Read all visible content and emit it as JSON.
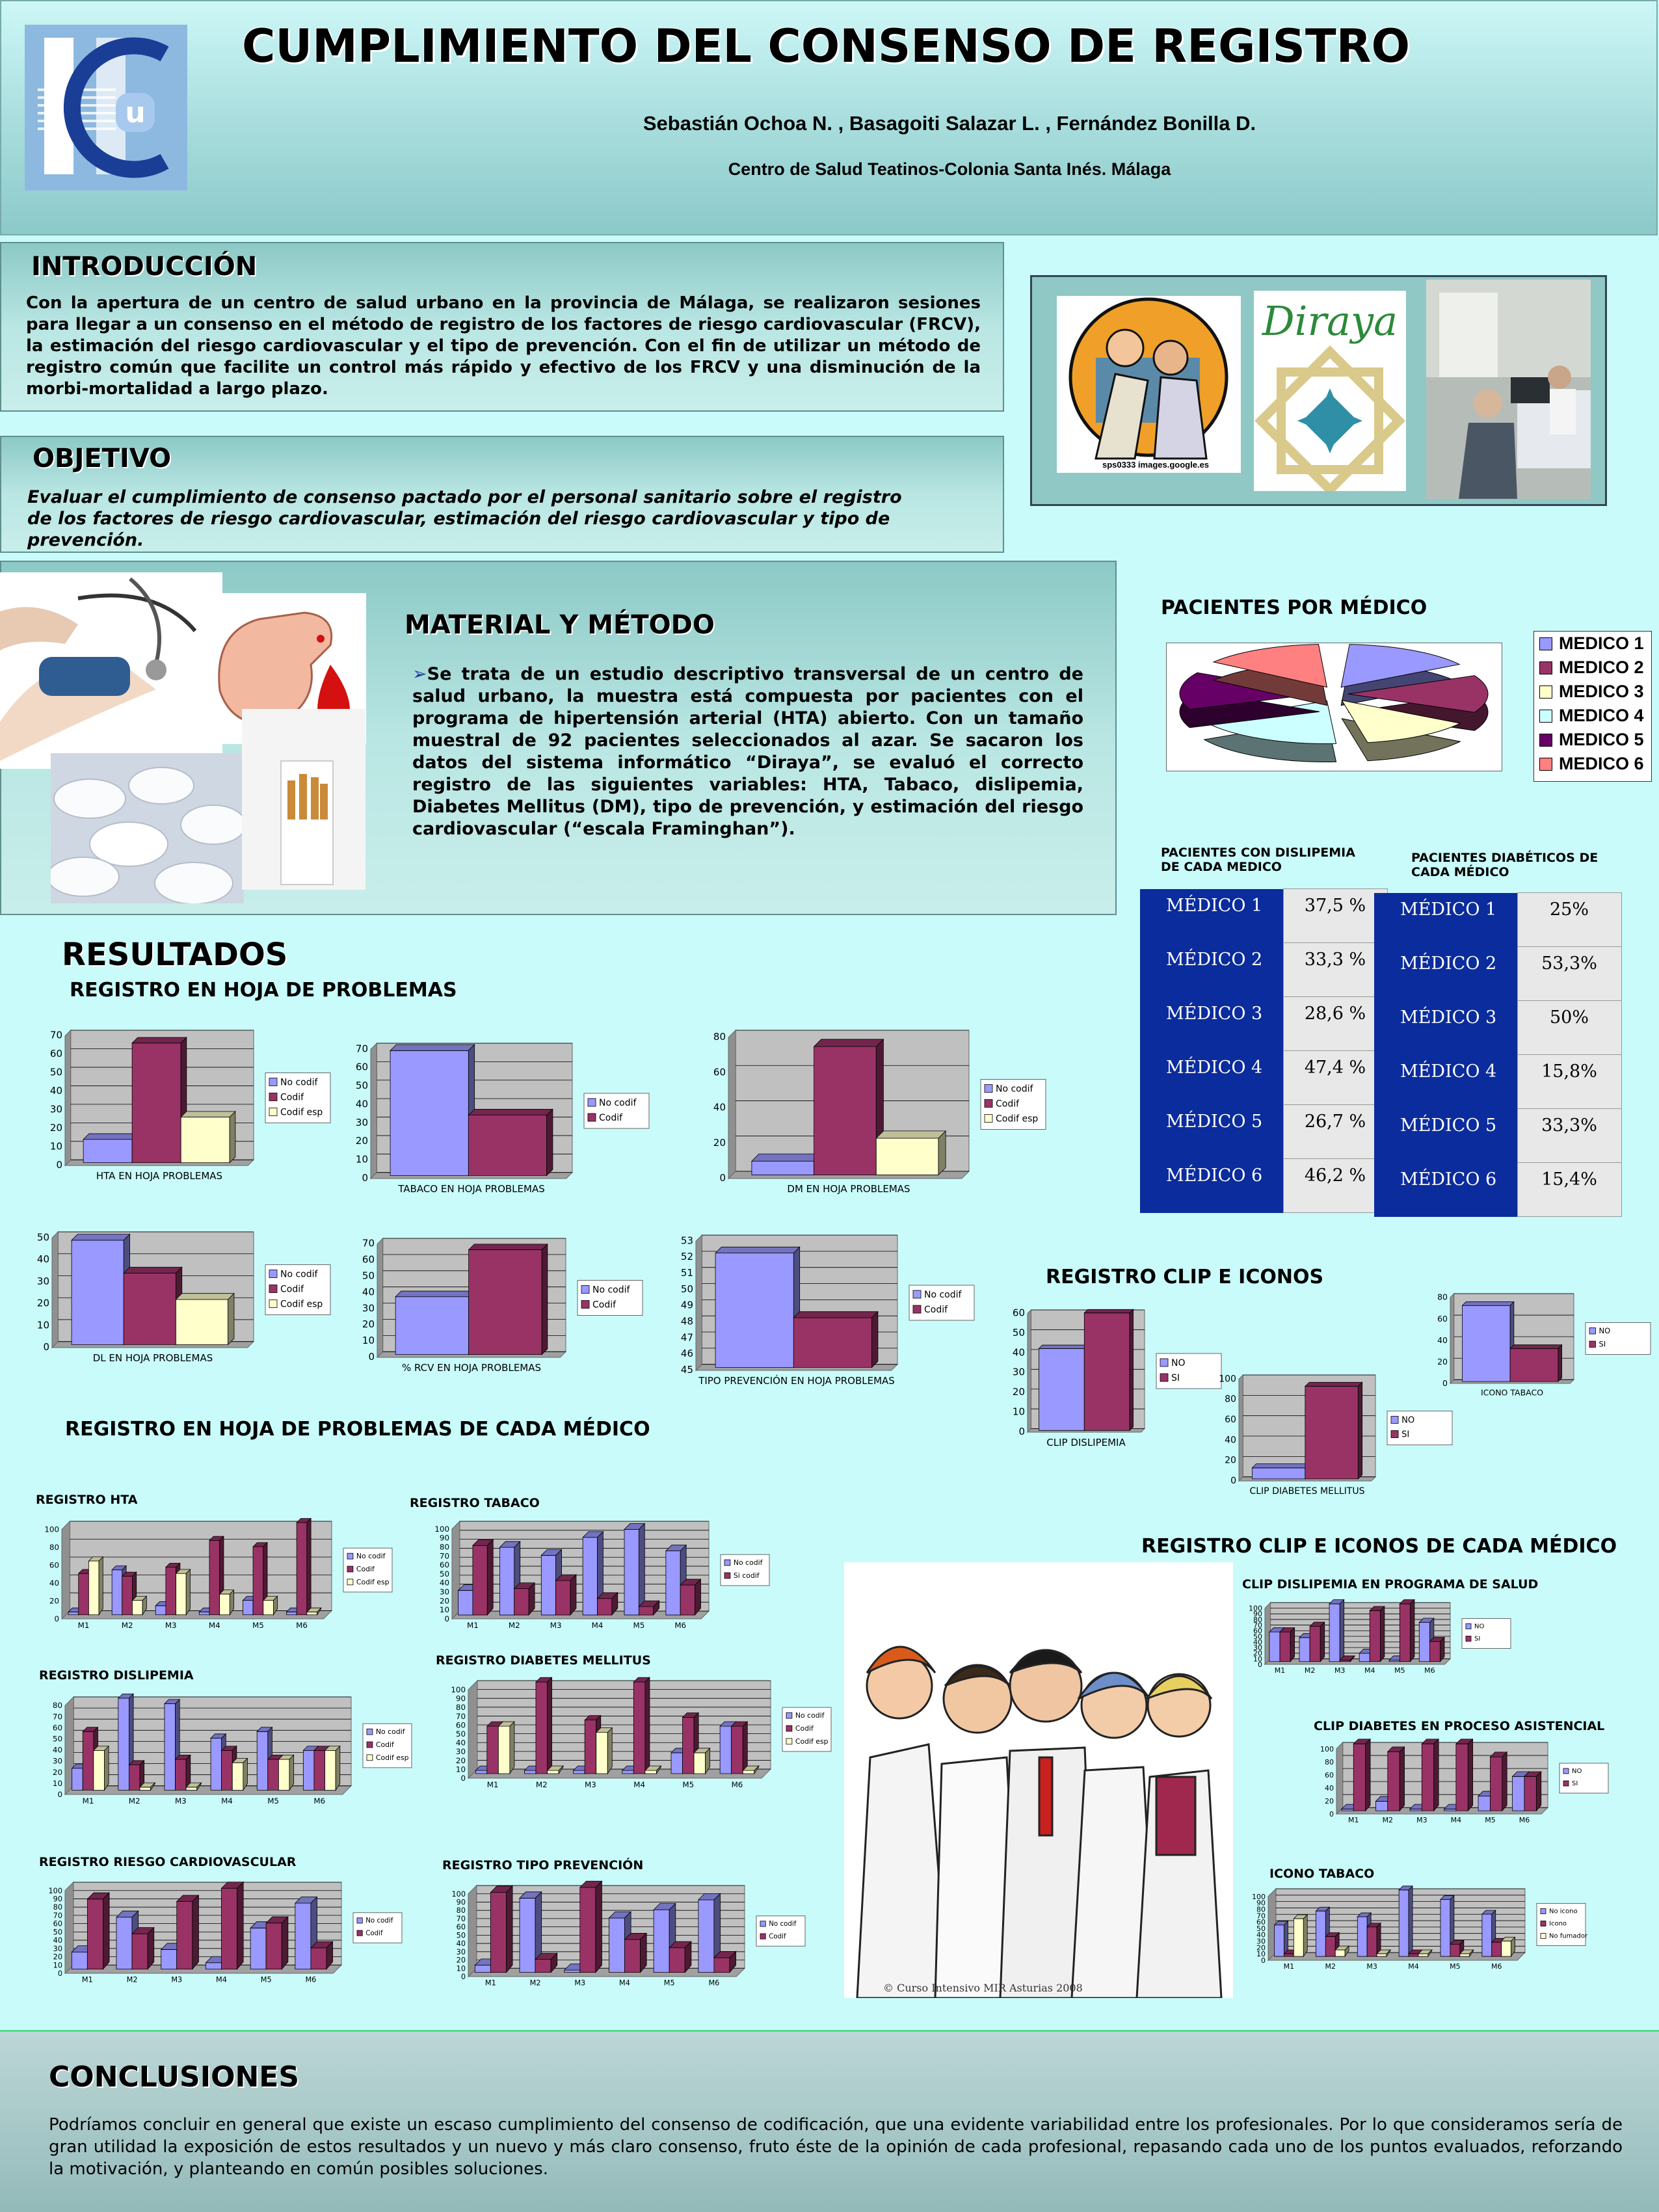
{
  "header": {
    "title": "CUMPLIMIENTO DEL CONSENSO DE REGISTRO",
    "authors": "Sebastián Ochoa N. ,  Basagoiti Salazar L. , Fernández Bonilla D.",
    "center": "Centro de Salud Teatinos-Colonia Santa Inés. Málaga"
  },
  "intro": {
    "title": "INTRODUCCIÓN",
    "text": "Con la apertura de un centro de salud urbano en la provincia de Málaga, se realizaron sesiones para llegar a un consenso en el método de registro de los factores de riesgo cardiovascular (FRCV), la estimación del riesgo cardiovascular y el tipo de prevención. Con el fin de utilizar un método de registro común que facilite un control más rápido y efectivo de los FRCV y una disminución de la morbi-mortalidad a largo plazo."
  },
  "images_top": {
    "caption": "sps0333 images.google.es",
    "diraya": "Diraya"
  },
  "objetivo": {
    "title": "OBJETIVO",
    "text": "Evaluar el cumplimiento de consenso pactado por el personal sanitario sobre el registro de los factores de riesgo cardiovascular, estimación del riesgo cardiovascular y tipo de prevención."
  },
  "material": {
    "title": "MATERIAL Y MÉTODO",
    "text": "Se trata de un estudio descriptivo transversal de un centro de salud urbano, la muestra está compuesta por pacientes con el programa de hipertensión arterial (HTA) abierto. Con un tamaño muestral de 92 pacientes seleccionados al azar. Se sacaron los datos del sistema informático “Diraya”, se evaluó el correcto registro de las siguientes variables: HTA, Tabaco, dislipemia, Diabetes Mellitus (DM), tipo de prevención, y estimación del riesgo cardiovascular (“escala Framinghan”)."
  },
  "pacientes": {
    "title": "PACIENTES POR MÉDICO",
    "legend": [
      "MEDICO 1",
      "MEDICO 2",
      "MEDICO 3",
      "MEDICO 4",
      "MEDICO 5",
      "MEDICO 6"
    ],
    "colors": [
      "#9999ff",
      "#993366",
      "#ffffcc",
      "#ccffff",
      "#660066",
      "#ff8080"
    ]
  },
  "tables": {
    "dis_title": "PACIENTES CON DISLIPEMIA DE CADA MEDICO",
    "dia_title": "PACIENTES DIABÉTICOS DE CADA MÉDICO",
    "dislipemia": [
      [
        "MÉDICO 1",
        "37,5 %"
      ],
      [
        "MÉDICO 2",
        "33,3 %"
      ],
      [
        "MÉDICO 3",
        "28,6 %"
      ],
      [
        "MÉDICO 4",
        "47,4  %"
      ],
      [
        "MÉDICO 5",
        "26,7 %"
      ],
      [
        "MÉDICO 6",
        "46,2 %"
      ]
    ],
    "diabeticos": [
      [
        "MÉDICO 1",
        "25%"
      ],
      [
        "MÉDICO 2",
        "53,3%"
      ],
      [
        "MÉDICO 3",
        "50%"
      ],
      [
        "MÉDICO 4",
        "15,8%"
      ],
      [
        "MÉDICO 5",
        "33,3%"
      ],
      [
        "MÉDICO 6",
        "15,4%"
      ]
    ]
  },
  "resultados": {
    "title": "RESULTADOS",
    "sub1": "REGISTRO EN HOJA DE PROBLEMAS",
    "sub2": "REGISTRO EN HOJA DE PROBLEMAS DE CADA MÉDICO",
    "clip": "REGISTRO CLIP E ICONOS",
    "clip_medico": "REGISTRO CLIP E ICONOS DE CADA MÉDICO"
  },
  "small_titles": {
    "hta": "REGISTRO HTA",
    "tabaco": "REGISTRO TABACO",
    "dis": "REGISTRO DISLIPEMIA",
    "dm": "REGISTRO DIABETES MELLITUS",
    "rcv": "REGISTRO RIESGO CARDIOVASCULAR",
    "tp": "REGISTRO TIPO PREVENCIÓN",
    "clipdis": "CLIP  DISLIPEMIA EN PROGRAMA DE SALUD",
    "clipdia": "CLIP  DIABETES EN PROCESO ASISTENCIAL",
    "icono": "ICONO TABACO"
  },
  "doctors_caption": "© Curso Intensivo MIR Asturias 2008",
  "conclusiones": {
    "title": "CONCLUSIONES",
    "text": "Podríamos concluir en general que existe un escaso cumplimiento del consenso de codificación, que una evidente variabilidad entre los profesionales. Por lo que consideramos sería de gran utilidad la exposición de estos resultados y un nuevo y más claro consenso, fruto éste de la opinión de cada profesional,  repasando cada uno de los puntos evaluados,  reforzando la motivación, y planteando en común posibles soluciones."
  },
  "chart_data": [
    {
      "id": "hta",
      "type": "bar",
      "xlabel": "HTA EN HOJA PROBLEMAS",
      "categories": [
        ""
      ],
      "series": [
        {
          "name": "No codif",
          "values": [
            12
          ]
        },
        {
          "name": "Codif",
          "values": [
            64
          ]
        },
        {
          "name": "Codif esp",
          "values": [
            24
          ]
        }
      ],
      "ylim": [
        0,
        70
      ],
      "yticks": [
        0,
        10,
        20,
        30,
        40,
        50,
        60,
        70
      ]
    },
    {
      "id": "tabaco",
      "type": "bar",
      "xlabel": "TABACO EN HOJA PROBLEMAS",
      "categories": [
        ""
      ],
      "series": [
        {
          "name": "No codif",
          "values": [
            67
          ]
        },
        {
          "name": "Codif",
          "values": [
            32
          ]
        }
      ],
      "ylim": [
        0,
        70
      ],
      "yticks": [
        0,
        10,
        20,
        30,
        40,
        50,
        60,
        70
      ]
    },
    {
      "id": "dm",
      "type": "bar",
      "xlabel": "DM EN HOJA PROBLEMAS",
      "categories": [
        ""
      ],
      "series": [
        {
          "name": "No codif",
          "values": [
            7
          ]
        },
        {
          "name": "Codif",
          "values": [
            72
          ]
        },
        {
          "name": "Codif esp",
          "values": [
            20
          ]
        }
      ],
      "ylim": [
        0,
        80
      ],
      "yticks": [
        0,
        20,
        40,
        60,
        80
      ]
    },
    {
      "id": "dl",
      "type": "bar",
      "xlabel": "DL EN HOJA PROBLEMAS",
      "categories": [
        ""
      ],
      "series": [
        {
          "name": "No codif",
          "values": [
            47
          ]
        },
        {
          "name": "Codif",
          "values": [
            32
          ]
        },
        {
          "name": "Codif esp",
          "values": [
            20
          ]
        }
      ],
      "ylim": [
        0,
        50
      ],
      "yticks": [
        0,
        10,
        20,
        30,
        40,
        50
      ]
    },
    {
      "id": "rcv",
      "type": "bar",
      "xlabel": "% RCV EN HOJA PROBLEMAS",
      "categories": [
        ""
      ],
      "series": [
        {
          "name": "No codif",
          "values": [
            35
          ]
        },
        {
          "name": "Codif",
          "values": [
            64
          ]
        }
      ],
      "ylim": [
        0,
        70
      ],
      "yticks": [
        0,
        10,
        20,
        30,
        40,
        50,
        60,
        70
      ]
    },
    {
      "id": "tp",
      "type": "bar",
      "xlabel": "TIPO PREVENCIÓN EN HOJA PROBLEMAS",
      "categories": [
        ""
      ],
      "series": [
        {
          "name": "No codif",
          "values": [
            52
          ]
        },
        {
          "name": "Codif",
          "values": [
            48
          ]
        }
      ],
      "ylim": [
        45,
        53
      ],
      "yticks": [
        45,
        46,
        47,
        48,
        49,
        50,
        51,
        52,
        53
      ]
    },
    {
      "id": "clipdis",
      "type": "bar",
      "xlabel": "CLIP DISLIPEMIA",
      "categories": [
        ""
      ],
      "series": [
        {
          "name": "NO",
          "values": [
            41
          ]
        },
        {
          "name": "SI",
          "values": [
            59
          ]
        }
      ],
      "ylim": [
        0,
        60
      ],
      "yticks": [
        0,
        10,
        20,
        30,
        40,
        50,
        60
      ]
    },
    {
      "id": "clipdia",
      "type": "bar",
      "xlabel": "CLIP DIABETES MELLITUS",
      "categories": [
        ""
      ],
      "series": [
        {
          "name": "NO",
          "values": [
            10
          ]
        },
        {
          "name": "SI",
          "values": [
            90
          ]
        }
      ],
      "ylim": [
        0,
        100
      ],
      "yticks": [
        0,
        20,
        40,
        60,
        80,
        100
      ]
    },
    {
      "id": "icono",
      "type": "bar",
      "xlabel": "ICONO TABACO",
      "categories": [
        ""
      ],
      "series": [
        {
          "name": "NO",
          "values": [
            70
          ]
        },
        {
          "name": "SI",
          "values": [
            30
          ]
        }
      ],
      "ylim": [
        0,
        80
      ],
      "yticks": [
        0,
        20,
        40,
        60,
        80
      ]
    },
    {
      "id": "m_hta",
      "type": "bar",
      "categories": [
        "M1",
        "M2",
        "M3",
        "M4",
        "M5",
        "M6"
      ],
      "series": [
        {
          "name": "No codif",
          "values": [
            0,
            47,
            7,
            0,
            13,
            0
          ]
        },
        {
          "name": "Codif",
          "values": [
            43,
            40,
            50,
            80,
            73,
            100
          ]
        },
        {
          "name": "Codif esp",
          "values": [
            57,
            13,
            43,
            20,
            13,
            0
          ]
        }
      ],
      "ylim": [
        0,
        100
      ],
      "yticks": [
        0,
        20,
        40,
        60,
        80,
        100
      ]
    },
    {
      "id": "m_tabaco",
      "type": "bar",
      "categories": [
        "M1",
        "M2",
        "M3",
        "M4",
        "M5",
        "M6"
      ],
      "series": [
        {
          "name": "No codif",
          "values": [
            25,
            73,
            64,
            84,
            93,
            69
          ]
        },
        {
          "name": "Si codif",
          "values": [
            75,
            27,
            36,
            16,
            7,
            31
          ]
        }
      ],
      "ylim": [
        0,
        100
      ],
      "yticks": [
        0,
        10,
        20,
        30,
        40,
        50,
        60,
        70,
        80,
        90,
        100
      ]
    },
    {
      "id": "m_dis",
      "type": "bar",
      "categories": [
        "M1",
        "M2",
        "M3",
        "M4",
        "M5",
        "M6"
      ],
      "series": [
        {
          "name": "No codif",
          "values": [
            17,
            80,
            75,
            44,
            50,
            33
          ]
        },
        {
          "name": "Codif",
          "values": [
            50,
            20,
            25,
            33,
            25,
            33
          ]
        },
        {
          "name": "Codif esp",
          "values": [
            33,
            0,
            0,
            22,
            25,
            33
          ]
        }
      ],
      "ylim": [
        0,
        80
      ],
      "yticks": [
        0,
        10,
        20,
        30,
        40,
        50,
        60,
        70,
        80
      ]
    },
    {
      "id": "m_dm",
      "type": "bar",
      "categories": [
        "M1",
        "M2",
        "M3",
        "M4",
        "M5",
        "M6"
      ],
      "series": [
        {
          "name": "No codif",
          "values": [
            0,
            0,
            0,
            0,
            20,
            50
          ]
        },
        {
          "name": "Codif",
          "values": [
            50,
            100,
            57,
            100,
            60,
            50
          ]
        },
        {
          "name": "Codif esp",
          "values": [
            50,
            0,
            43,
            0,
            20,
            0
          ]
        }
      ],
      "ylim": [
        0,
        100
      ],
      "yticks": [
        0,
        10,
        20,
        30,
        40,
        50,
        60,
        70,
        80,
        90,
        100
      ]
    },
    {
      "id": "m_rcv",
      "type": "bar",
      "categories": [
        "M1",
        "M2",
        "M3",
        "M4",
        "M5",
        "M6"
      ],
      "series": [
        {
          "name": "No codif",
          "values": [
            18,
            60,
            21,
            5,
            47,
            77
          ]
        },
        {
          "name": "Codif",
          "values": [
            82,
            40,
            79,
            95,
            53,
            23
          ]
        }
      ],
      "ylim": [
        0,
        100
      ],
      "yticks": [
        0,
        10,
        20,
        30,
        40,
        50,
        60,
        70,
        80,
        90,
        100
      ]
    },
    {
      "id": "m_tp",
      "type": "bar",
      "categories": [
        "M1",
        "M2",
        "M3",
        "M4",
        "M5",
        "M6"
      ],
      "series": [
        {
          "name": "No codif",
          "values": [
            6,
            87,
            0,
            63,
            73,
            85
          ]
        },
        {
          "name": "Codif",
          "values": [
            94,
            13,
            100,
            37,
            27,
            15
          ]
        }
      ],
      "ylim": [
        0,
        100
      ],
      "yticks": [
        0,
        10,
        20,
        30,
        40,
        50,
        60,
        70,
        80,
        90,
        100
      ]
    },
    {
      "id": "m_clipdis",
      "type": "bar",
      "categories": [
        "M1",
        "M2",
        "M3",
        "M4",
        "M5",
        "M6"
      ],
      "series": [
        {
          "name": "NO",
          "values": [
            50,
            40,
            100,
            12,
            0,
            67
          ]
        },
        {
          "name": "SI",
          "values": [
            50,
            60,
            0,
            88,
            100,
            33
          ]
        }
      ],
      "ylim": [
        0,
        100
      ],
      "yticks": [
        0,
        10,
        20,
        30,
        40,
        50,
        60,
        70,
        80,
        90,
        100
      ]
    },
    {
      "id": "m_clipdia",
      "type": "bar",
      "categories": [
        "M1",
        "M2",
        "M3",
        "M4",
        "M5",
        "M6"
      ],
      "series": [
        {
          "name": "NO",
          "values": [
            0,
            12,
            0,
            0,
            20,
            50
          ]
        },
        {
          "name": "SI",
          "values": [
            100,
            88,
            100,
            100,
            80,
            50
          ]
        }
      ],
      "ylim": [
        0,
        100
      ],
      "yticks": [
        0,
        20,
        40,
        60,
        80,
        100
      ]
    },
    {
      "id": "m_icono",
      "type": "bar",
      "categories": [
        "M1",
        "M2",
        "M3",
        "M4",
        "M5",
        "M6"
      ],
      "series": [
        {
          "name": "No icono",
          "values": [
            45,
            67,
            58,
            100,
            85,
            62
          ]
        },
        {
          "name": "Icono",
          "values": [
            0,
            27,
            42,
            0,
            15,
            18
          ]
        },
        {
          "name": "No fumador",
          "values": [
            55,
            6,
            0,
            0,
            0,
            20
          ]
        }
      ],
      "ylim": [
        0,
        100
      ],
      "yticks": [
        0,
        10,
        20,
        30,
        40,
        50,
        60,
        70,
        80,
        90,
        100
      ]
    },
    {
      "id": "pie",
      "type": "pie",
      "categories": [
        "MEDICO 1",
        "MEDICO 2",
        "MEDICO 3",
        "MEDICO 4",
        "MEDICO 5",
        "MEDICO 6"
      ],
      "values": [
        17,
        16,
        15,
        20,
        16,
        16
      ]
    }
  ]
}
